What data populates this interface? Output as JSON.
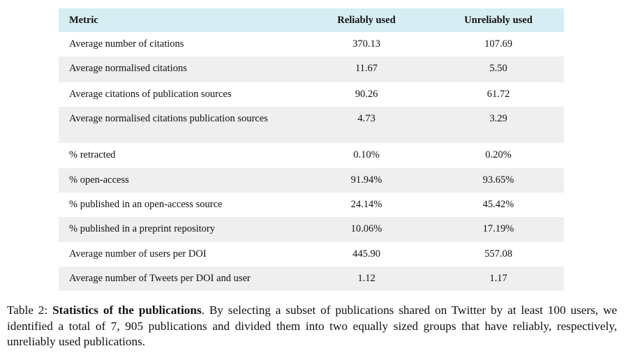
{
  "table": {
    "header": [
      "Metric",
      "Reliably used",
      "Unreliably used"
    ],
    "rows": [
      [
        "Average number of citations",
        "370.13",
        "107.69"
      ],
      [
        "Average normalised citations",
        "11.67",
        "5.50"
      ],
      [
        "Average citations of publication sources",
        "90.26",
        "61.72"
      ],
      [
        "Average normalised citations publication sources",
        "4.73",
        "3.29"
      ],
      [
        "% retracted",
        "0.10%",
        "0.20%"
      ],
      [
        "% open-access",
        "91.94%",
        "93.65%"
      ],
      [
        "% published in an open-access source",
        "24.14%",
        "45.42%"
      ],
      [
        "% published in a preprint repository",
        "10.06%",
        "17.19%"
      ],
      [
        "Average number of users per DOI",
        "445.90",
        "557.08"
      ],
      [
        "Average number of Tweets per DOI and user",
        "1.12",
        "1.17"
      ]
    ]
  },
  "caption": {
    "label": "Table 2:",
    "title": "Statistics of the publications",
    "text": ". By selecting a subset of publications shared on Twitter by at least 100 users, we identified a total of 7, 905 publications and divided them into two equally sized groups that have reliably, respectively, unreliably used publications."
  }
}
